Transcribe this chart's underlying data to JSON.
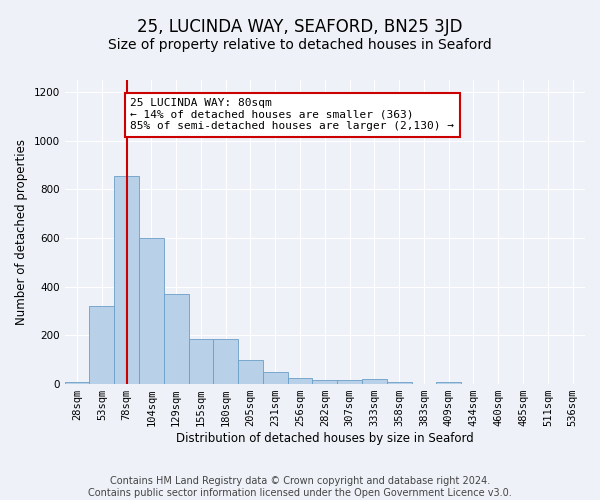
{
  "title": "25, LUCINDA WAY, SEAFORD, BN25 3JD",
  "subtitle": "Size of property relative to detached houses in Seaford",
  "xlabel": "Distribution of detached houses by size in Seaford",
  "ylabel": "Number of detached properties",
  "categories": [
    "28sqm",
    "53sqm",
    "78sqm",
    "104sqm",
    "129sqm",
    "155sqm",
    "180sqm",
    "205sqm",
    "231sqm",
    "256sqm",
    "282sqm",
    "307sqm",
    "333sqm",
    "358sqm",
    "383sqm",
    "409sqm",
    "434sqm",
    "460sqm",
    "485sqm",
    "511sqm",
    "536sqm"
  ],
  "values": [
    10,
    320,
    855,
    600,
    370,
    185,
    185,
    100,
    50,
    25,
    15,
    15,
    20,
    10,
    0,
    10,
    0,
    0,
    0,
    0,
    0
  ],
  "bar_color": "#b8d0e8",
  "bar_edge_color": "#6a9fc8",
  "vline_x_index": 2,
  "vline_color": "#cc0000",
  "annotation_text": "25 LUCINDA WAY: 80sqm\n← 14% of detached houses are smaller (363)\n85% of semi-detached houses are larger (2,130) →",
  "annotation_box_facecolor": "#ffffff",
  "annotation_box_edgecolor": "#cc0000",
  "ylim": [
    0,
    1250
  ],
  "yticks": [
    0,
    200,
    400,
    600,
    800,
    1000,
    1200
  ],
  "footer_text": "Contains HM Land Registry data © Crown copyright and database right 2024.\nContains public sector information licensed under the Open Government Licence v3.0.",
  "bg_color": "#eef2f8",
  "title_fontsize": 12,
  "subtitle_fontsize": 10,
  "axis_label_fontsize": 8.5,
  "tick_fontsize": 7.5,
  "footer_fontsize": 7,
  "annotation_fontsize": 8
}
